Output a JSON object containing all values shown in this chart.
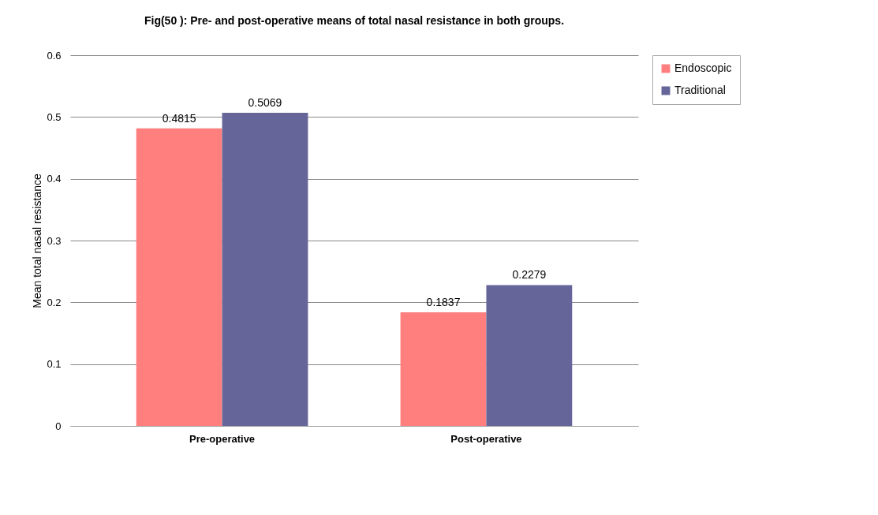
{
  "chart_data": {
    "type": "bar",
    "title": "Fig(50 ): Pre- and post-operative means of total nasal resistance in both groups.",
    "ylabel": "Mean total nasal resistance",
    "categories": [
      "Pre-operative",
      "Post-operative"
    ],
    "series": [
      {
        "name": "Endoscopic",
        "color": "#ff7f7f",
        "values": [
          0.4815,
          0.1837
        ]
      },
      {
        "name": "Traditional",
        "color": "#65659a",
        "values": [
          0.5069,
          0.2279
        ]
      }
    ],
    "ylim": [
      0,
      0.6
    ],
    "yticks": [
      0,
      0.1,
      0.2,
      0.3,
      0.4,
      0.5,
      0.6
    ],
    "grid": "y",
    "legend": "right",
    "data_labels": true
  }
}
